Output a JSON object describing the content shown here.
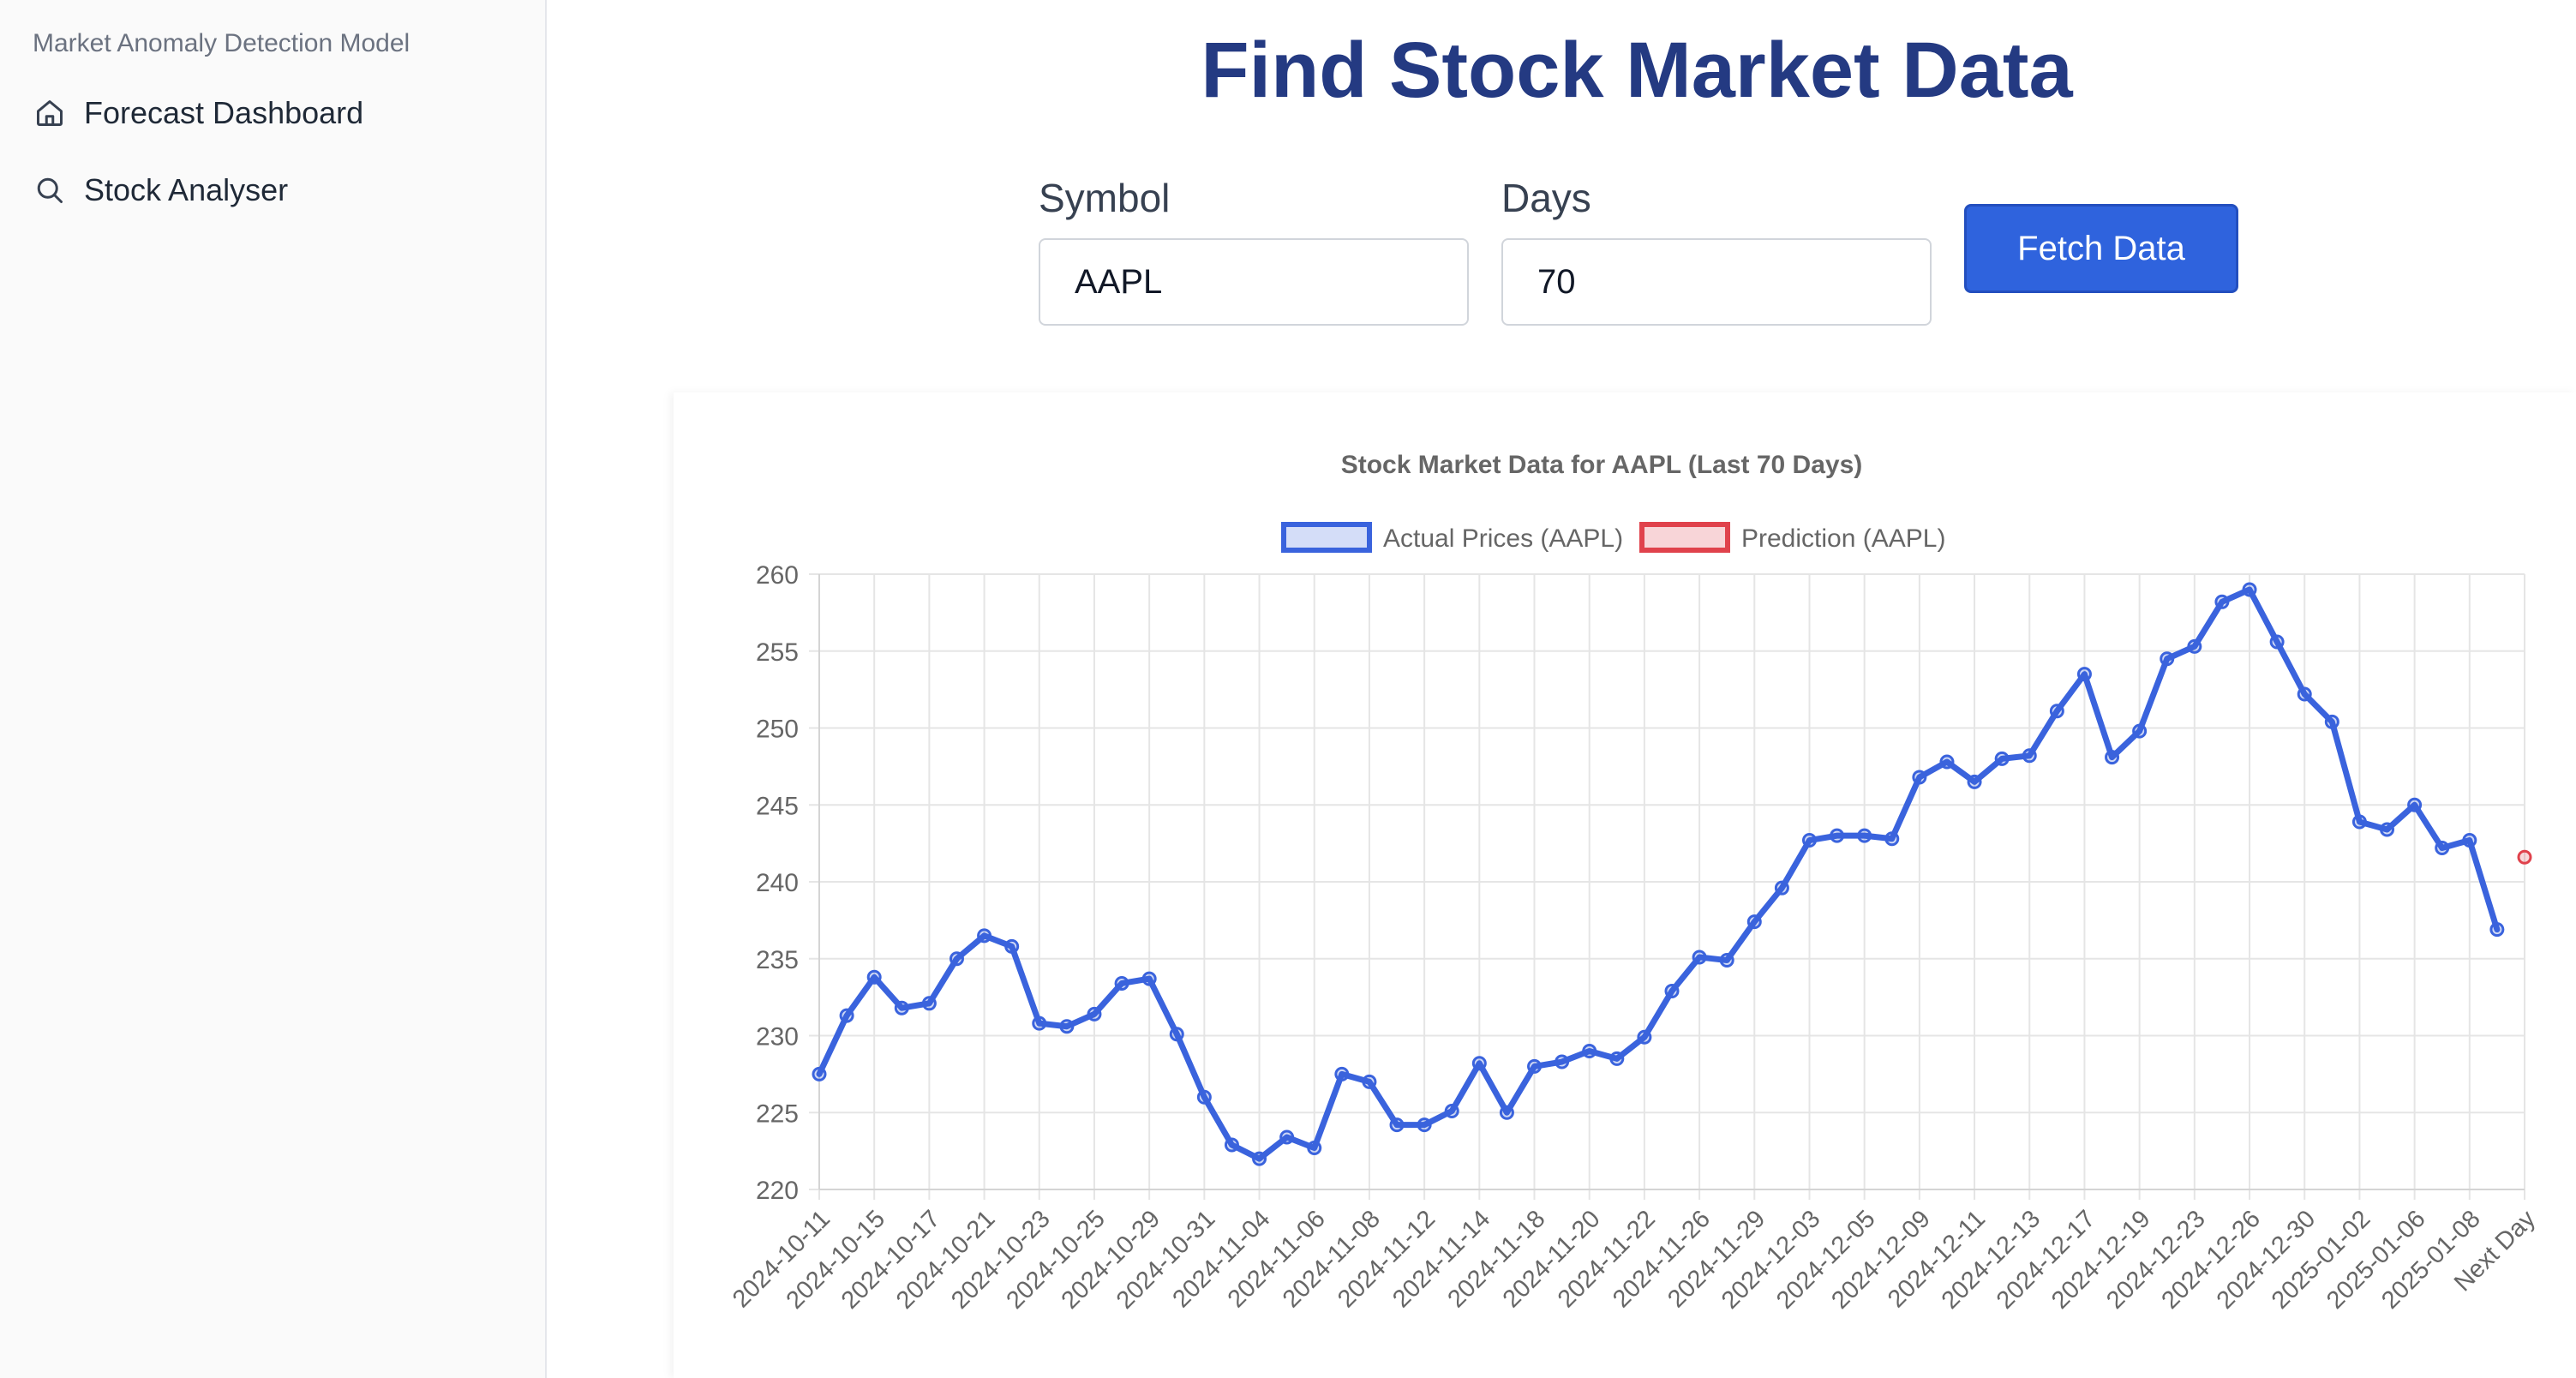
{
  "sidebar": {
    "brand": "Market Anomaly Detection Model",
    "items": [
      {
        "label": "Forecast Dashboard",
        "icon": "home-icon"
      },
      {
        "label": "Stock Analyser",
        "icon": "search-icon"
      }
    ]
  },
  "main": {
    "title": "Find Stock Market Data",
    "symbol_label": "Symbol",
    "symbol_value": "AAPL",
    "days_label": "Days",
    "days_value": "70",
    "fetch_label": "Fetch Data"
  },
  "colors": {
    "title": "#243a82",
    "button": "#2f63dd",
    "actual": "#3a63dd",
    "prediction": "#e0424c"
  },
  "chart_data": {
    "type": "line",
    "title": "Stock Market Data for AAPL (Last 70 Days)",
    "xlabel": "",
    "ylabel": "",
    "ylim": [
      220,
      260
    ],
    "yticks": [
      220,
      225,
      230,
      235,
      240,
      245,
      250,
      255,
      260
    ],
    "grid": true,
    "legend_position": "top",
    "tick_labels": [
      "2024-10-11",
      "2024-10-15",
      "2024-10-17",
      "2024-10-21",
      "2024-10-23",
      "2024-10-25",
      "2024-10-29",
      "2024-10-31",
      "2024-11-04",
      "2024-11-06",
      "2024-11-08",
      "2024-11-12",
      "2024-11-14",
      "2024-11-18",
      "2024-11-20",
      "2024-11-22",
      "2024-11-26",
      "2024-11-29",
      "2024-12-03",
      "2024-12-05",
      "2024-12-09",
      "2024-12-11",
      "2024-12-13",
      "2024-12-17",
      "2024-12-19",
      "2024-12-23",
      "2024-12-26",
      "2024-12-30",
      "2025-01-02",
      "2025-01-06",
      "2025-01-08",
      "Next Day"
    ],
    "series": [
      {
        "name": "Actual Prices (AAPL)",
        "color": "#3a63dd",
        "values": [
          227.5,
          231.3,
          233.8,
          231.8,
          232.1,
          235.0,
          236.5,
          235.8,
          230.8,
          230.6,
          231.4,
          233.4,
          233.7,
          230.1,
          226.0,
          222.9,
          222.0,
          223.4,
          222.7,
          227.5,
          227.0,
          224.2,
          224.2,
          225.1,
          228.2,
          225.0,
          228.0,
          228.3,
          229.0,
          228.5,
          229.9,
          232.9,
          235.1,
          234.9,
          237.4,
          239.6,
          242.7,
          243.0,
          243.0,
          242.8,
          246.8,
          247.8,
          246.5,
          248.0,
          248.2,
          251.1,
          253.5,
          248.1,
          249.8,
          254.5,
          255.3,
          258.2,
          259.0,
          255.6,
          252.2,
          250.4,
          243.9,
          243.4,
          245.0,
          242.2,
          242.7,
          236.9
        ]
      },
      {
        "name": "Prediction (AAPL)",
        "color": "#e0424c",
        "values": [
          241.6
        ]
      }
    ]
  }
}
